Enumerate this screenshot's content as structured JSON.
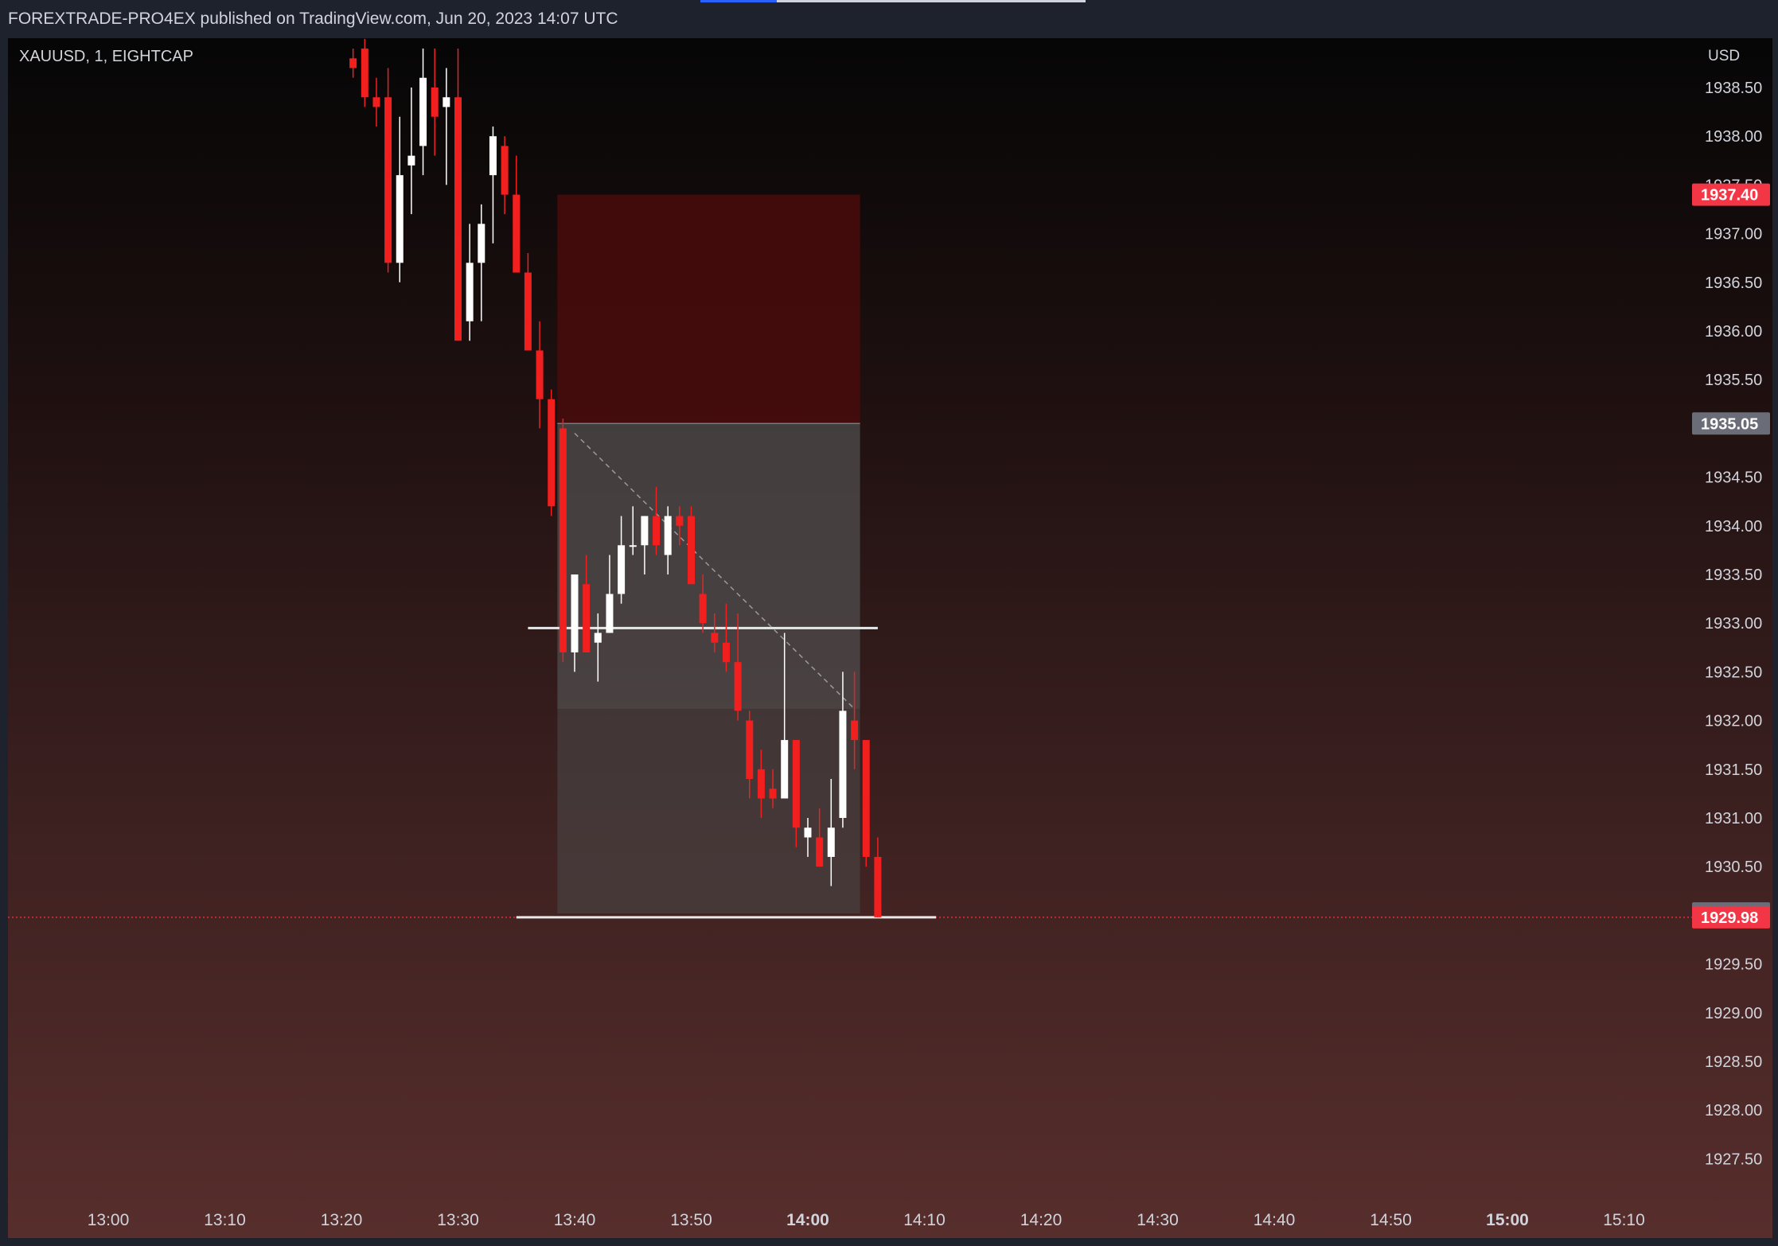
{
  "header": {
    "publish_line": "FOREXTRADE-PRO4EX published on TradingView.com, Jun 20, 2023 14:07 UTC"
  },
  "chart_data": {
    "type": "candlestick",
    "symbol_line": "XAUUSD, 1, EIGHTCAP",
    "currency": "USD",
    "y_range": [
      1927.0,
      1939.0
    ],
    "y_ticks": [
      "1938.50",
      "1938.00",
      "1937.50",
      "1937.00",
      "1936.50",
      "1936.00",
      "1935.50",
      "1934.50",
      "1934.00",
      "1933.50",
      "1933.00",
      "1932.50",
      "1932.00",
      "1931.50",
      "1931.00",
      "1930.50",
      "1929.50",
      "1929.00",
      "1928.50",
      "1928.00",
      "1927.50"
    ],
    "x_range": [
      "12:55",
      "15:13"
    ],
    "x_ticks": [
      "13:00",
      "13:10",
      "13:20",
      "13:30",
      "13:40",
      "13:50",
      "14:00",
      "14:10",
      "14:20",
      "14:30",
      "14:40",
      "14:50",
      "15:00",
      "15:10"
    ],
    "price_labels": [
      {
        "value": "1937.40",
        "color": "#f23645"
      },
      {
        "value": "1935.05",
        "color": "#6a6d78"
      },
      {
        "value": "1930.02",
        "color": "#6a6d78"
      },
      {
        "value": "1929.98",
        "color": "#f23645"
      }
    ],
    "candles": [
      {
        "t": "13:21",
        "o": 1938.8,
        "h": 1938.9,
        "l": 1938.6,
        "c": 1938.7
      },
      {
        "t": "13:22",
        "o": 1938.9,
        "h": 1939.0,
        "l": 1938.3,
        "c": 1938.4
      },
      {
        "t": "13:23",
        "o": 1938.4,
        "h": 1938.6,
        "l": 1938.1,
        "c": 1938.3
      },
      {
        "t": "13:24",
        "o": 1938.4,
        "h": 1938.7,
        "l": 1936.6,
        "c": 1936.7
      },
      {
        "t": "13:25",
        "o": 1936.7,
        "h": 1938.2,
        "l": 1936.5,
        "c": 1937.6
      },
      {
        "t": "13:26",
        "o": 1937.7,
        "h": 1938.5,
        "l": 1937.2,
        "c": 1937.8
      },
      {
        "t": "13:27",
        "o": 1937.9,
        "h": 1938.9,
        "l": 1937.6,
        "c": 1938.6
      },
      {
        "t": "13:28",
        "o": 1938.5,
        "h": 1938.9,
        "l": 1937.8,
        "c": 1938.2
      },
      {
        "t": "13:29",
        "o": 1938.3,
        "h": 1938.7,
        "l": 1937.5,
        "c": 1938.4
      },
      {
        "t": "13:30",
        "o": 1938.4,
        "h": 1938.9,
        "l": 1935.9,
        "c": 1935.9
      },
      {
        "t": "13:31",
        "o": 1936.1,
        "h": 1937.1,
        "l": 1935.9,
        "c": 1936.7
      },
      {
        "t": "13:32",
        "o": 1936.7,
        "h": 1937.3,
        "l": 1936.1,
        "c": 1937.1
      },
      {
        "t": "13:33",
        "o": 1937.6,
        "h": 1938.1,
        "l": 1936.9,
        "c": 1938.0
      },
      {
        "t": "13:34",
        "o": 1937.9,
        "h": 1938.0,
        "l": 1937.2,
        "c": 1937.4
      },
      {
        "t": "13:35",
        "o": 1937.4,
        "h": 1937.8,
        "l": 1936.6,
        "c": 1936.6
      },
      {
        "t": "13:36",
        "o": 1936.6,
        "h": 1936.8,
        "l": 1935.8,
        "c": 1935.8
      },
      {
        "t": "13:37",
        "o": 1935.8,
        "h": 1936.1,
        "l": 1935.0,
        "c": 1935.3
      },
      {
        "t": "13:38",
        "o": 1935.3,
        "h": 1935.4,
        "l": 1934.1,
        "c": 1934.2
      },
      {
        "t": "13:39",
        "o": 1935.0,
        "h": 1935.1,
        "l": 1932.6,
        "c": 1932.7
      },
      {
        "t": "13:40",
        "o": 1932.7,
        "h": 1933.5,
        "l": 1932.5,
        "c": 1933.5
      },
      {
        "t": "13:41",
        "o": 1933.4,
        "h": 1933.7,
        "l": 1932.7,
        "c": 1932.7
      },
      {
        "t": "13:42",
        "o": 1932.8,
        "h": 1933.1,
        "l": 1932.4,
        "c": 1932.9
      },
      {
        "t": "13:43",
        "o": 1932.9,
        "h": 1933.7,
        "l": 1932.9,
        "c": 1933.3
      },
      {
        "t": "13:44",
        "o": 1933.3,
        "h": 1934.1,
        "l": 1933.2,
        "c": 1933.8
      },
      {
        "t": "13:45",
        "o": 1933.8,
        "h": 1934.2,
        "l": 1933.7,
        "c": 1933.8
      },
      {
        "t": "13:46",
        "o": 1933.8,
        "h": 1934.1,
        "l": 1933.5,
        "c": 1934.1
      },
      {
        "t": "13:47",
        "o": 1934.1,
        "h": 1934.4,
        "l": 1933.7,
        "c": 1933.8
      },
      {
        "t": "13:48",
        "o": 1933.7,
        "h": 1934.2,
        "l": 1933.5,
        "c": 1934.1
      },
      {
        "t": "13:49",
        "o": 1934.1,
        "h": 1934.2,
        "l": 1933.8,
        "c": 1934.0
      },
      {
        "t": "13:50",
        "o": 1934.1,
        "h": 1934.2,
        "l": 1933.4,
        "c": 1933.4
      },
      {
        "t": "13:51",
        "o": 1933.3,
        "h": 1933.5,
        "l": 1932.9,
        "c": 1933.0
      },
      {
        "t": "13:52",
        "o": 1932.9,
        "h": 1933.1,
        "l": 1932.7,
        "c": 1932.8
      },
      {
        "t": "13:53",
        "o": 1932.8,
        "h": 1933.2,
        "l": 1932.5,
        "c": 1932.6
      },
      {
        "t": "13:54",
        "o": 1932.6,
        "h": 1933.1,
        "l": 1932.0,
        "c": 1932.1
      },
      {
        "t": "13:55",
        "o": 1932.0,
        "h": 1932.1,
        "l": 1931.2,
        "c": 1931.4
      },
      {
        "t": "13:56",
        "o": 1931.5,
        "h": 1931.7,
        "l": 1931.0,
        "c": 1931.2
      },
      {
        "t": "13:57",
        "o": 1931.3,
        "h": 1931.5,
        "l": 1931.1,
        "c": 1931.2
      },
      {
        "t": "13:58",
        "o": 1931.2,
        "h": 1932.9,
        "l": 1931.2,
        "c": 1931.8
      },
      {
        "t": "13:59",
        "o": 1931.8,
        "h": 1931.8,
        "l": 1930.7,
        "c": 1930.9
      },
      {
        "t": "14:00",
        "o": 1930.8,
        "h": 1931.0,
        "l": 1930.6,
        "c": 1930.9
      },
      {
        "t": "14:01",
        "o": 1930.8,
        "h": 1931.1,
        "l": 1930.5,
        "c": 1930.5
      },
      {
        "t": "14:02",
        "o": 1930.6,
        "h": 1931.4,
        "l": 1930.3,
        "c": 1930.9
      },
      {
        "t": "14:03",
        "o": 1931.0,
        "h": 1932.5,
        "l": 1930.9,
        "c": 1932.1
      },
      {
        "t": "14:04",
        "o": 1932.0,
        "h": 1932.5,
        "l": 1931.5,
        "c": 1931.8
      },
      {
        "t": "14:05",
        "o": 1931.8,
        "h": 1931.8,
        "l": 1930.5,
        "c": 1930.6
      },
      {
        "t": "14:06",
        "o": 1930.6,
        "h": 1930.8,
        "l": 1929.98,
        "c": 1929.98
      }
    ],
    "position_tool": {
      "t_start": "13:39",
      "t_end": "14:04",
      "stop": 1937.4,
      "entry": 1935.05,
      "target": 1930.02,
      "stop_color": "#4a0c0c"
    },
    "horizontal_lines": [
      {
        "t_start": "13:36",
        "t_end": "14:06",
        "y": 1932.95
      },
      {
        "t_start": "13:35",
        "t_end": "14:11",
        "y": 1929.98
      }
    ],
    "trend_line": {
      "t1": "13:40",
      "y1": 1934.95,
      "t2": "14:04",
      "y2": 1932.12
    },
    "last_price_line": 1929.98
  }
}
